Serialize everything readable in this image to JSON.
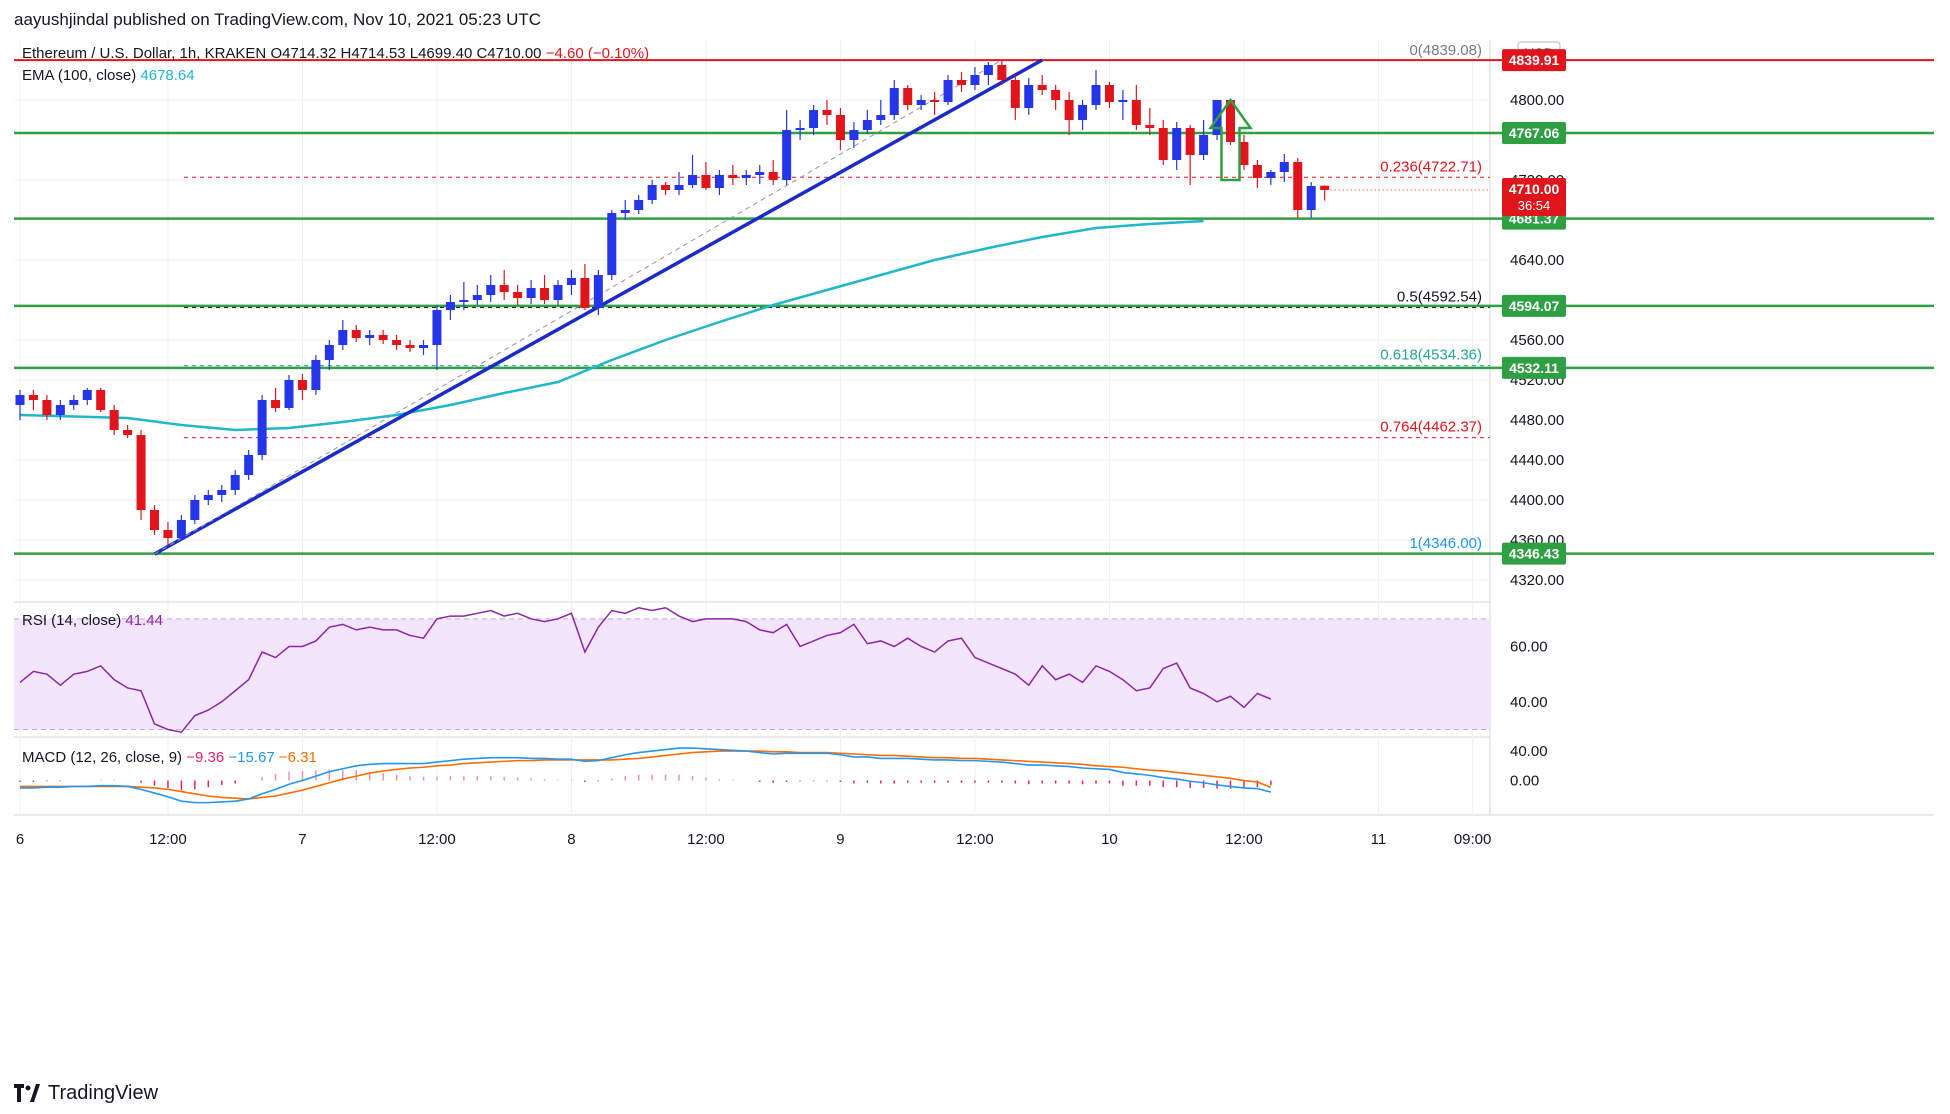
{
  "header": {
    "publisher_text": "aayushjindal published on TradingView.com, Nov 10, 2021 05:23 UTC"
  },
  "footer": {
    "brand": "TradingView"
  },
  "colors": {
    "up": "#2436e8",
    "down": "#e0151b",
    "ema": "#1fb7c9",
    "trendline": "#1a2bc9",
    "support": "#2ea043",
    "fib_top": "#e0151b",
    "rsi_line": "#8e24aa",
    "rsi_band": "#f3e5fb",
    "macd": "#2196f3",
    "signal": "#ff6d00",
    "hist": "#e91e63"
  },
  "chart_data": [
    {
      "type": "candlestick",
      "symbol": "Ethereum / U.S. Dollar, 1h, KRAKEN",
      "ohlc_label": {
        "o": "O4714.32",
        "h": "H4714.53",
        "l": "L4699.40",
        "c": "C4710.00",
        "chg": "−4.60 (−0.10%)"
      },
      "ema_label": "EMA (100, close)",
      "ema_value": "4678.64",
      "currency": "USD",
      "ylim": [
        4300,
        4860
      ],
      "y_ticks": [
        "4320.00",
        "4360.00",
        "4400.00",
        "4440.00",
        "4480.00",
        "4520.00",
        "4560.00",
        "4640.00",
        "4720.00",
        "4800.00"
      ],
      "x_ticks": [
        {
          "label": "6",
          "bar": 0
        },
        {
          "label": "12:00",
          "bar": 11
        },
        {
          "label": "7",
          "bar": 21
        },
        {
          "label": "12:00",
          "bar": 31
        },
        {
          "label": "8",
          "bar": 41
        },
        {
          "label": "12:00",
          "bar": 51
        },
        {
          "label": "9",
          "bar": 61
        },
        {
          "label": "12:00",
          "bar": 71
        },
        {
          "label": "10",
          "bar": 81
        },
        {
          "label": "12:00",
          "bar": 91
        },
        {
          "label": "11",
          "bar": 101
        },
        {
          "label": "09:00",
          "bar": 108
        }
      ],
      "candles": [
        [
          4495,
          4510,
          4480,
          4505
        ],
        [
          4505,
          4510,
          4490,
          4500
        ],
        [
          4500,
          4505,
          4480,
          4485
        ],
        [
          4485,
          4500,
          4480,
          4495
        ],
        [
          4495,
          4505,
          4490,
          4500
        ],
        [
          4500,
          4512,
          4495,
          4510
        ],
        [
          4510,
          4512,
          4488,
          4490
        ],
        [
          4490,
          4495,
          4465,
          4470
        ],
        [
          4470,
          4475,
          4462,
          4465
        ],
        [
          4465,
          4470,
          4380,
          4390
        ],
        [
          4390,
          4395,
          4365,
          4370
        ],
        [
          4370,
          4378,
          4355,
          4362
        ],
        [
          4362,
          4385,
          4360,
          4380
        ],
        [
          4380,
          4405,
          4376,
          4400
        ],
        [
          4400,
          4410,
          4395,
          4405
        ],
        [
          4405,
          4415,
          4398,
          4410
        ],
        [
          4410,
          4430,
          4405,
          4425
        ],
        [
          4425,
          4450,
          4420,
          4445
        ],
        [
          4445,
          4505,
          4440,
          4500
        ],
        [
          4500,
          4512,
          4488,
          4492
        ],
        [
          4492,
          4525,
          4490,
          4520
        ],
        [
          4520,
          4526,
          4500,
          4510
        ],
        [
          4510,
          4545,
          4505,
          4540
        ],
        [
          4540,
          4560,
          4530,
          4555
        ],
        [
          4555,
          4580,
          4550,
          4570
        ],
        [
          4570,
          4575,
          4558,
          4562
        ],
        [
          4562,
          4570,
          4555,
          4565
        ],
        [
          4565,
          4570,
          4556,
          4560
        ],
        [
          4560,
          4565,
          4550,
          4555
        ],
        [
          4555,
          4560,
          4548,
          4552
        ],
        [
          4552,
          4560,
          4545,
          4555
        ],
        [
          4555,
          4595,
          4530,
          4590
        ],
        [
          4590,
          4605,
          4580,
          4598
        ],
        [
          4598,
          4618,
          4590,
          4600
        ],
        [
          4600,
          4615,
          4595,
          4605
        ],
        [
          4605,
          4625,
          4598,
          4615
        ],
        [
          4615,
          4630,
          4600,
          4608
        ],
        [
          4608,
          4615,
          4595,
          4602
        ],
        [
          4602,
          4620,
          4596,
          4612
        ],
        [
          4612,
          4625,
          4596,
          4600
        ],
        [
          4600,
          4620,
          4595,
          4615
        ],
        [
          4615,
          4630,
          4605,
          4622
        ],
        [
          4622,
          4636,
          4590,
          4592
        ],
        [
          4592,
          4630,
          4585,
          4625
        ],
        [
          4625,
          4690,
          4620,
          4687
        ],
        [
          4687,
          4700,
          4680,
          4690
        ],
        [
          4690,
          4705,
          4686,
          4700
        ],
        [
          4700,
          4720,
          4696,
          4715
        ],
        [
          4715,
          4718,
          4705,
          4710
        ],
        [
          4710,
          4728,
          4705,
          4715
        ],
        [
          4715,
          4745,
          4712,
          4725
        ],
        [
          4725,
          4738,
          4710,
          4712
        ],
        [
          4712,
          4730,
          4705,
          4725
        ],
        [
          4725,
          4735,
          4715,
          4722
        ],
        [
          4722,
          4730,
          4715,
          4725
        ],
        [
          4725,
          4735,
          4716,
          4728
        ],
        [
          4728,
          4740,
          4715,
          4720
        ],
        [
          4720,
          4790,
          4715,
          4770
        ],
        [
          4770,
          4780,
          4760,
          4772
        ],
        [
          4772,
          4795,
          4765,
          4790
        ],
        [
          4790,
          4800,
          4775,
          4785
        ],
        [
          4785,
          4792,
          4750,
          4760
        ],
        [
          4760,
          4778,
          4752,
          4770
        ],
        [
          4770,
          4790,
          4766,
          4780
        ],
        [
          4780,
          4800,
          4775,
          4785
        ],
        [
          4785,
          4820,
          4780,
          4812
        ],
        [
          4812,
          4815,
          4790,
          4795
        ],
        [
          4795,
          4805,
          4790,
          4800
        ],
        [
          4800,
          4808,
          4785,
          4798
        ],
        [
          4798,
          4825,
          4795,
          4820
        ],
        [
          4820,
          4828,
          4808,
          4815
        ],
        [
          4815,
          4833,
          4810,
          4825
        ],
        [
          4825,
          4838,
          4815,
          4835
        ],
        [
          4835,
          4840,
          4815,
          4820
        ],
        [
          4820,
          4825,
          4780,
          4792
        ],
        [
          4792,
          4822,
          4785,
          4815
        ],
        [
          4815,
          4825,
          4805,
          4810
        ],
        [
          4810,
          4815,
          4790,
          4800
        ],
        [
          4800,
          4808,
          4765,
          4780
        ],
        [
          4780,
          4800,
          4770,
          4795
        ],
        [
          4795,
          4830,
          4790,
          4815
        ],
        [
          4815,
          4818,
          4792,
          4798
        ],
        [
          4798,
          4810,
          4780,
          4800
        ],
        [
          4800,
          4815,
          4770,
          4775
        ],
        [
          4775,
          4792,
          4765,
          4772
        ],
        [
          4772,
          4780,
          4735,
          4740
        ],
        [
          4740,
          4778,
          4730,
          4772
        ],
        [
          4772,
          4775,
          4715,
          4745
        ],
        [
          4745,
          4780,
          4740,
          4765
        ],
        [
          4765,
          4800,
          4760,
          4800
        ],
        [
          4800,
          4800,
          4755,
          4758
        ],
        [
          4758,
          4765,
          4730,
          4735
        ],
        [
          4735,
          4740,
          4712,
          4722
        ],
        [
          4722,
          4730,
          4715,
          4728
        ],
        [
          4728,
          4746,
          4718,
          4738
        ],
        [
          4738,
          4742,
          4682,
          4690
        ],
        [
          4690,
          4718,
          4682,
          4714
        ],
        [
          4714.32,
          4714.53,
          4699.4,
          4710.0
        ]
      ],
      "ema": [
        [
          0,
          4485
        ],
        [
          8,
          4482
        ],
        [
          12,
          4475
        ],
        [
          16,
          4470
        ],
        [
          20,
          4472
        ],
        [
          24,
          4478
        ],
        [
          28,
          4485
        ],
        [
          32,
          4495
        ],
        [
          36,
          4507
        ],
        [
          40,
          4518
        ],
        [
          44,
          4540
        ],
        [
          48,
          4560
        ],
        [
          52,
          4578
        ],
        [
          56,
          4595
        ],
        [
          60,
          4610
        ],
        [
          64,
          4625
        ],
        [
          68,
          4640
        ],
        [
          72,
          4652
        ],
        [
          76,
          4663
        ],
        [
          80,
          4672
        ],
        [
          84,
          4676
        ],
        [
          88,
          4679
        ]
      ],
      "trendlines": [
        {
          "from": [
            10,
            4346
          ],
          "to": [
            76,
            4840
          ]
        },
        {
          "from": [
            10,
            4346
          ],
          "to": [
            73,
            4840
          ],
          "dashed": true
        }
      ],
      "horizontal_levels": [
        {
          "value": 4767.06,
          "label": "4767.06"
        },
        {
          "value": 4681.37,
          "label": "4681.37"
        },
        {
          "value": 4594.07,
          "label": "4594.07"
        },
        {
          "value": 4532.11,
          "label": "4532.11"
        },
        {
          "value": 4346.43,
          "label": "4346.43"
        }
      ],
      "top_level": {
        "value": 4839.91,
        "label": "4839.91"
      },
      "fib_levels": [
        {
          "label": "0(4839.08)",
          "value": 4839.08,
          "style": "top"
        },
        {
          "label": "0.236(4722.71)",
          "value": 4722.71,
          "style": "red"
        },
        {
          "label": "0.5(4592.54)",
          "value": 4592.54,
          "style": "dark"
        },
        {
          "label": "0.618(4534.36)",
          "value": 4534.36,
          "style": "teal"
        },
        {
          "label": "0.764(4462.37)",
          "value": 4462.37,
          "style": "red"
        },
        {
          "label": "1(4346.00)",
          "value": 4346.0,
          "style": "blue"
        }
      ],
      "price_tag": {
        "value": 4710.0,
        "label": "4710.00",
        "countdown": "36:54"
      },
      "annotation_arrow": {
        "bar": 90,
        "from": 4720,
        "to": 4800
      }
    },
    {
      "type": "line",
      "name": "RSI",
      "label": "RSI (14, close)",
      "value_label": "41.44",
      "ylim": [
        28,
        75
      ],
      "band": [
        30,
        70
      ],
      "y_ticks": [
        "40.00",
        "60.00"
      ],
      "values": [
        47,
        51,
        50,
        46,
        50,
        51,
        53,
        48,
        45,
        44,
        32,
        30,
        29,
        35,
        37,
        40,
        44,
        48,
        58,
        56,
        60,
        60,
        62,
        67,
        68,
        66,
        67,
        66,
        66,
        64,
        63,
        70,
        71,
        71,
        72,
        73,
        71,
        72,
        70,
        69,
        70,
        72,
        58,
        67,
        73,
        72,
        74,
        73,
        74,
        71,
        69,
        70,
        70,
        70,
        69,
        66,
        65,
        68,
        60,
        62,
        64,
        65,
        68,
        61,
        62,
        60,
        63,
        60,
        58,
        62,
        63,
        56,
        54,
        52,
        50,
        46,
        53,
        48,
        50,
        47,
        53,
        51,
        48,
        44,
        45,
        52,
        54,
        45,
        43,
        40,
        42,
        38,
        43,
        41
      ]
    },
    {
      "type": "line",
      "name": "MACD",
      "label": "MACD (12, 26, close, 9)",
      "values_labels": [
        "−9.36",
        "−15.67",
        "−6.31"
      ],
      "ylim": [
        -40,
        55
      ],
      "y_ticks": [
        "40.00",
        "0.00"
      ],
      "macd": [
        -10,
        -10,
        -9,
        -9,
        -8,
        -8,
        -7,
        -7,
        -8,
        -12,
        -17,
        -22,
        -28,
        -30,
        -30,
        -29,
        -28,
        -25,
        -18,
        -12,
        -5,
        0,
        6,
        12,
        16,
        20,
        22,
        23,
        23,
        23,
        23,
        25,
        27,
        29,
        30,
        31,
        31,
        31,
        30,
        30,
        29,
        29,
        26,
        27,
        31,
        35,
        38,
        40,
        42,
        44,
        44,
        43,
        42,
        41,
        40,
        38,
        36,
        37,
        37,
        37,
        37,
        35,
        32,
        32,
        30,
        30,
        30,
        29,
        28,
        28,
        27,
        27,
        26,
        25,
        23,
        21,
        21,
        20,
        19,
        17,
        16,
        15,
        11,
        9,
        7,
        4,
        2,
        -1,
        -3,
        -6,
        -8,
        -10,
        -11,
        -15.67
      ],
      "signal": [
        -8,
        -8,
        -8,
        -8,
        -8,
        -8,
        -8,
        -8,
        -8,
        -9,
        -10,
        -12,
        -15,
        -18,
        -21,
        -23,
        -24,
        -25,
        -23,
        -21,
        -17,
        -13,
        -8,
        -3,
        2,
        6,
        10,
        13,
        15,
        17,
        18,
        20,
        21,
        23,
        24,
        25,
        26,
        27,
        27,
        28,
        28,
        28,
        28,
        28,
        28,
        29,
        30,
        32,
        34,
        36,
        38,
        39,
        40,
        40,
        40,
        40,
        39,
        39,
        38,
        38,
        38,
        37,
        36,
        35,
        34,
        34,
        33,
        32,
        31,
        31,
        30,
        30,
        29,
        28,
        27,
        26,
        25,
        24,
        23,
        22,
        20,
        19,
        18,
        16,
        14,
        13,
        11,
        9,
        7,
        5,
        3,
        0,
        -2,
        -9.36
      ],
      "histogram": [
        -2,
        -2,
        -1,
        -1,
        0,
        0,
        1,
        1,
        0,
        -3,
        -7,
        -10,
        -13,
        -12,
        -9,
        -6,
        -4,
        0,
        5,
        9,
        12,
        13,
        14,
        15,
        14,
        14,
        12,
        10,
        8,
        6,
        5,
        5,
        6,
        6,
        6,
        6,
        5,
        4,
        3,
        2,
        1,
        1,
        -2,
        -1,
        3,
        6,
        8,
        8,
        8,
        8,
        6,
        4,
        2,
        1,
        0,
        -2,
        -3,
        -2,
        -1,
        -1,
        -1,
        -2,
        -4,
        -3,
        -4,
        -4,
        -3,
        -3,
        -3,
        -3,
        -3,
        -3,
        -3,
        -3,
        -4,
        -5,
        -4,
        -4,
        -4,
        -5,
        -4,
        -4,
        -7,
        -7,
        -7,
        -9,
        -9,
        -10,
        -10,
        -11,
        -11,
        -10,
        -9,
        -6.31
      ]
    }
  ]
}
